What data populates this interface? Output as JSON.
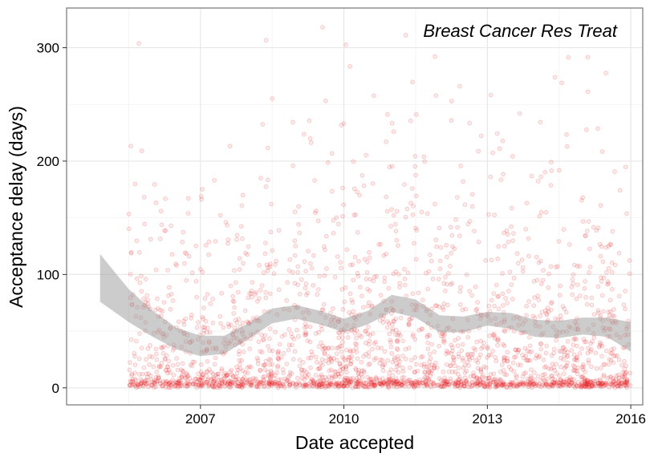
{
  "chart_data": {
    "type": "scatter",
    "title": "",
    "annotation": "Breast Cancer Res Treat",
    "xlabel": "Date accepted",
    "ylabel": "Acceptance delay (days)",
    "x_ticks": [
      "2007",
      "2010",
      "2013",
      "2016"
    ],
    "x_tick_values": [
      2007,
      2010,
      2013,
      2016
    ],
    "y_ticks": [
      "0",
      "100",
      "200",
      "300"
    ],
    "y_tick_values": [
      0,
      100,
      200,
      300
    ],
    "xlim": [
      2004.2,
      2016.25
    ],
    "ylim": [
      -15,
      335
    ],
    "grid": true,
    "point_color": "#e41a1c",
    "point_alpha": 0.15,
    "smooth_color": "#999999",
    "points_summary": {
      "x_range": [
        2005.5,
        2016.0
      ],
      "y_range": [
        0,
        330
      ],
      "dense_band_near_zero": true,
      "approx_count": 3500
    },
    "smooth_fit": {
      "x": [
        2004.9,
        2005.5,
        2006.0,
        2006.5,
        2007.0,
        2007.5,
        2008.0,
        2008.5,
        2009.0,
        2009.5,
        2010.0,
        2010.5,
        2011.0,
        2011.5,
        2012.0,
        2012.5,
        2013.0,
        2013.5,
        2014.0,
        2014.5,
        2015.0,
        2015.5,
        2016.0
      ],
      "y": [
        97,
        72,
        56,
        43,
        37,
        38,
        50,
        63,
        67,
        62,
        55,
        62,
        75,
        70,
        57,
        56,
        61,
        59,
        53,
        52,
        55,
        54,
        45
      ],
      "lower": [
        76,
        58,
        45,
        34,
        28,
        30,
        43,
        57,
        61,
        56,
        49,
        56,
        67,
        62,
        49,
        49,
        55,
        52,
        45,
        44,
        47,
        45,
        32
      ],
      "upper": [
        118,
        87,
        68,
        53,
        46,
        46,
        57,
        70,
        73,
        68,
        61,
        68,
        82,
        78,
        64,
        63,
        67,
        66,
        60,
        59,
        62,
        62,
        58
      ]
    }
  }
}
